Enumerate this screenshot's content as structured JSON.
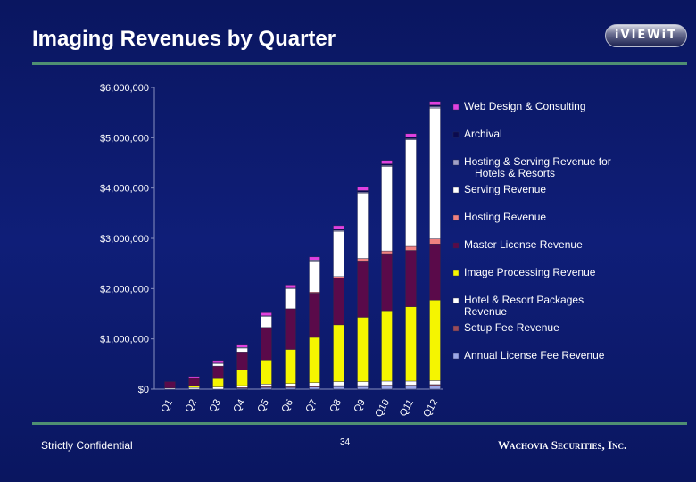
{
  "header": {
    "title": "Imaging Revenues by Quarter",
    "logo_text": "iVIEWiT"
  },
  "footer": {
    "confidential": "Strictly Confidential",
    "page_number": "34",
    "company": "Wachovia Securities, Inc."
  },
  "chart_data": {
    "type": "bar",
    "stacked": true,
    "title": "",
    "xlabel": "",
    "ylabel": "",
    "ylim": [
      0,
      6000000
    ],
    "yticks": [
      0,
      1000000,
      2000000,
      3000000,
      4000000,
      5000000,
      6000000
    ],
    "ytick_labels": [
      "$0",
      "$1,000,000",
      "$2,000,000",
      "$3,000,000",
      "$4,000,000",
      "$5,000,000",
      "$6,000,000"
    ],
    "categories": [
      "Q1",
      "Q2",
      "Q3",
      "Q4",
      "Q5",
      "Q6",
      "Q7",
      "Q8",
      "Q9",
      "Q10",
      "Q11",
      "Q12"
    ],
    "legend_position": "right",
    "series": [
      {
        "name": "Annual License Fee Revenue",
        "color": "#9aa6e8",
        "values": [
          0,
          0,
          0,
          20000,
          30000,
          30000,
          40000,
          50000,
          50000,
          60000,
          60000,
          70000
        ]
      },
      {
        "name": "Setup Fee Revenue",
        "color": "#9a4a5a",
        "values": [
          0,
          0,
          0,
          10000,
          20000,
          20000,
          20000,
          20000,
          20000,
          20000,
          20000,
          20000
        ]
      },
      {
        "name": "Hotel & Resort Packages Revenue",
        "color": "#ffffff",
        "values": [
          20000,
          30000,
          40000,
          40000,
          50000,
          60000,
          70000,
          80000,
          80000,
          80000,
          80000,
          80000
        ]
      },
      {
        "name": "Image Processing Revenue",
        "color": "#f5f500",
        "values": [
          0,
          40000,
          170000,
          310000,
          480000,
          680000,
          900000,
          1130000,
          1280000,
          1400000,
          1480000,
          1600000
        ]
      },
      {
        "name": "Master License Revenue",
        "color": "#5a0a4a",
        "values": [
          130000,
          150000,
          250000,
          360000,
          650000,
          810000,
          880000,
          930000,
          1120000,
          1120000,
          1120000,
          1120000
        ]
      },
      {
        "name": "Hosting Revenue",
        "color": "#f08080",
        "values": [
          0,
          0,
          0,
          0,
          0,
          0,
          20000,
          30000,
          50000,
          70000,
          80000,
          100000
        ]
      },
      {
        "name": "Serving Revenue",
        "color": "#ffffff",
        "values": [
          0,
          0,
          50000,
          80000,
          220000,
          400000,
          620000,
          900000,
          1300000,
          1680000,
          2120000,
          2600000
        ]
      },
      {
        "name": "Hosting & Serving Revenue for Hotels & Resorts",
        "color": "#a0a0c8",
        "values": [
          0,
          0,
          10000,
          10000,
          10000,
          10000,
          20000,
          20000,
          20000,
          20000,
          20000,
          30000
        ]
      },
      {
        "name": "Archival",
        "color": "#0a0a50",
        "values": [
          0,
          0,
          0,
          0,
          0,
          0,
          0,
          20000,
          30000,
          30000,
          30000,
          30000
        ]
      },
      {
        "name": "Web Design & Consulting",
        "color": "#e040e0",
        "values": [
          0,
          30000,
          50000,
          60000,
          60000,
          60000,
          60000,
          70000,
          70000,
          70000,
          70000,
          70000
        ]
      }
    ],
    "legend_entries": [
      {
        "label": "Web Design & Consulting",
        "color": "#e040e0"
      },
      {
        "label": "Archival",
        "color": "#0a0a50"
      },
      {
        "label": "Hosting & Serving Revenue for Hotels & Resorts",
        "color": "#a0a0c8"
      },
      {
        "label": "Serving Revenue",
        "color": "#ffffff"
      },
      {
        "label": "Hosting Revenue",
        "color": "#f08080"
      },
      {
        "label": "Master License Revenue",
        "color": "#5a0a4a"
      },
      {
        "label": "Image Processing Revenue",
        "color": "#f5f500"
      },
      {
        "label": "Hotel & Resort Packages Revenue",
        "color": "#ffffff"
      },
      {
        "label": "Setup Fee Revenue",
        "color": "#9a4a5a"
      },
      {
        "label": "Annual License Fee Revenue",
        "color": "#9aa6e8"
      }
    ]
  }
}
